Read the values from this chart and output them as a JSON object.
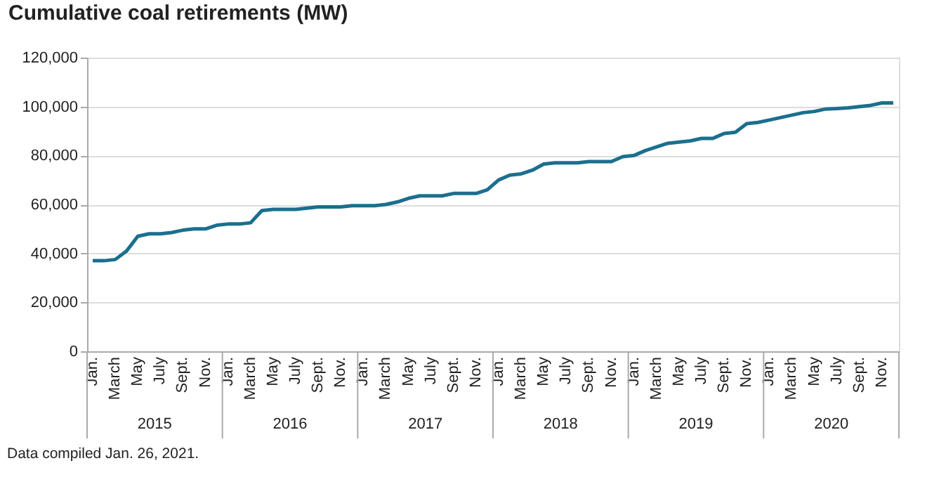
{
  "chart_data": {
    "type": "line",
    "title": "Cumulative coal retirements (MW)",
    "categories": [
      "Jan.",
      null,
      "March",
      null,
      "May",
      null,
      "July",
      null,
      "Sept.",
      null,
      "Nov.",
      null,
      "Jan.",
      null,
      "March",
      null,
      "May",
      null,
      "July",
      null,
      "Sept.",
      null,
      "Nov.",
      null,
      "Jan.",
      null,
      "March",
      null,
      "May",
      null,
      "July",
      null,
      "Sept.",
      null,
      "Nov.",
      null,
      "Jan.",
      null,
      "March",
      null,
      "May",
      null,
      "July",
      null,
      "Sept.",
      null,
      "Nov.",
      null,
      "Jan.",
      null,
      "March",
      null,
      "May",
      null,
      "July",
      null,
      "Sept.",
      null,
      "Nov.",
      null,
      "Jan.",
      null,
      "March",
      null,
      "May",
      null,
      "July",
      null,
      "Sept.",
      null,
      "Nov.",
      null
    ],
    "series": [
      {
        "color": "#1b6f8e",
        "values": [
          37000,
          37000,
          37500,
          41000,
          47000,
          48000,
          48000,
          48500,
          49500,
          50000,
          50000,
          51500,
          52000,
          52000,
          52500,
          57500,
          58000,
          58000,
          58000,
          58500,
          59000,
          59000,
          59000,
          59500,
          59500,
          59500,
          60000,
          61000,
          62500,
          63500,
          63500,
          63500,
          64500,
          64500,
          64500,
          66000,
          70000,
          72000,
          72500,
          74000,
          76500,
          77000,
          77000,
          77000,
          77500,
          77500,
          77500,
          79500,
          80000,
          82000,
          83500,
          85000,
          85500,
          86000,
          87000,
          87000,
          89000,
          89500,
          93000,
          93500,
          94500,
          95500,
          96500,
          97500,
          98000,
          99000,
          99200,
          99500,
          100000,
          100500,
          101500,
          101500
        ]
      }
    ],
    "ylim": [
      0,
      120000
    ],
    "yticks": [
      0,
      {
        "value": 20000,
        "label": "20,000"
      },
      {
        "value": 40000,
        "label": "40,000"
      },
      {
        "value": 60000,
        "label": "60,000"
      },
      {
        "value": 80000,
        "label": "80,000"
      },
      {
        "value": 100000,
        "label": "100,000"
      },
      {
        "value": 120000,
        "label": "120,000"
      }
    ],
    "grid": "y",
    "marker": "none",
    "line_style": "solid",
    "annotations": [
      "2015",
      "2016",
      "2017",
      "2018",
      "2019",
      "2020",
      "Data compiled Jan. 26, 2021."
    ]
  }
}
